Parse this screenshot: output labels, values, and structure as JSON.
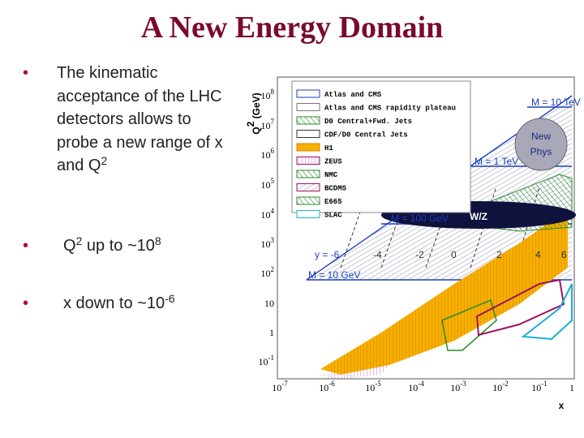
{
  "title": "A New Energy Domain",
  "bullets": [
    {
      "segments": [
        {
          "text": "The kinematic acceptance of the LHC detectors allows to probe a new range of x and Q"
        },
        {
          "sup": "2"
        }
      ]
    },
    {
      "segments": [
        {
          "text": "Q"
        },
        {
          "sup": "2"
        },
        {
          "text": " up to ~10"
        },
        {
          "sup": "8"
        }
      ]
    },
    {
      "segments": [
        {
          "text": "x down to ~10"
        },
        {
          "sup": "-6"
        }
      ]
    }
  ],
  "figure": {
    "ylabel": [
      {
        "text": "Q"
      },
      {
        "sup": "2"
      },
      {
        "text": " (GeV)"
      }
    ],
    "xlabel": "x",
    "legend": [
      "Atlas and CMS",
      "Atlas and CMS rapidity plateau",
      "D0 Central+Fwd. Jets",
      "CDF/D0 Central Jets",
      "H1",
      "ZEUS",
      "NMC",
      "BCDMS",
      "E665",
      "SLAC"
    ],
    "yticks": [
      {
        "base": "10",
        "exp": "8"
      },
      {
        "base": "10",
        "exp": "7"
      },
      {
        "base": "10",
        "exp": "6"
      },
      {
        "base": "10",
        "exp": "5"
      },
      {
        "base": "10",
        "exp": "4"
      },
      {
        "base": "10",
        "exp": "3"
      },
      {
        "base": "10",
        "exp": "2"
      },
      {
        "base": "10"
      },
      {
        "base": "1"
      },
      {
        "base": "10",
        "exp": "-1"
      }
    ],
    "xticks": [
      {
        "base": "10",
        "exp": "-7"
      },
      {
        "base": "10",
        "exp": "-6"
      },
      {
        "base": "10",
        "exp": "-5"
      },
      {
        "base": "10",
        "exp": "-4"
      },
      {
        "base": "10",
        "exp": "-3"
      },
      {
        "base": "10",
        "exp": "-2"
      },
      {
        "base": "10",
        "exp": "-1"
      },
      {
        "base": "1"
      }
    ],
    "annotations": [
      "M = 10 TeV",
      "M = 1 TeV",
      "M = 100 GeV",
      "M = 10 GeV",
      "y = -6",
      "-4",
      "-2",
      "0",
      "2",
      "4",
      "6"
    ],
    "new_physics": [
      "New",
      "Phys"
    ],
    "wz": "W/Z"
  }
}
